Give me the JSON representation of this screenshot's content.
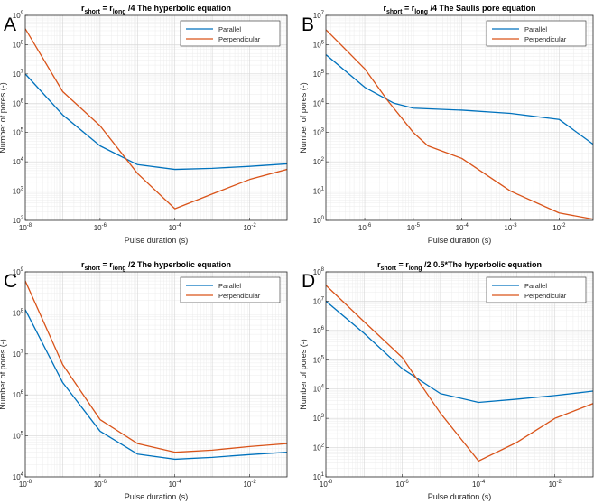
{
  "figure_colors": {
    "parallel": "#0072BD",
    "perpendicular": "#D95319"
  },
  "chart_data": [
    {
      "type": "line",
      "panel_letter": "A",
      "title": {
        "r": "r",
        "short": "short",
        "eq": " = r",
        "long": "long",
        "rest": " /4  The hyperbolic equation"
      },
      "xlabel": "Pulse duration (s)",
      "ylabel": "Number of pores (-)",
      "xscale": "log",
      "yscale": "log",
      "xlim_exp": [
        -8,
        -1
      ],
      "ylim_exp": [
        2,
        9
      ],
      "xtick_exps": [
        -8,
        -6,
        -4,
        -2
      ],
      "ytick_exps": [
        2,
        3,
        4,
        5,
        6,
        7,
        8,
        9
      ],
      "legend": {
        "location": "top-right",
        "entries": [
          "Parallel",
          "Perpendicular"
        ]
      },
      "series": [
        {
          "name": "Parallel",
          "x": [
            1e-08,
            1e-07,
            1e-06,
            1e-05,
            0.0001,
            0.001,
            0.01,
            0.1
          ],
          "y": [
            10000000.0,
            400000.0,
            35000.0,
            8000.0,
            5500.0,
            6000.0,
            7000.0,
            8500.0
          ]
        },
        {
          "name": "Perpendicular",
          "x": [
            1e-08,
            1e-07,
            1e-06,
            1e-05,
            0.0001,
            0.001,
            0.01,
            0.1
          ],
          "y": [
            350000000.0,
            2500000.0,
            170000.0,
            4000.0,
            250,
            800,
            2500,
            5500
          ]
        }
      ]
    },
    {
      "type": "line",
      "panel_letter": "B",
      "title": {
        "r": "r",
        "short": "short",
        "eq": " = r",
        "long": "long",
        "rest": " /4   The Saulis pore equation"
      },
      "xlabel": "Pulse duration (s)",
      "ylabel": "Number of pores (-)",
      "xscale": "log",
      "yscale": "log",
      "xlim_exp": [
        -6.8,
        -1.3
      ],
      "ylim_exp": [
        0,
        7
      ],
      "xtick_exps": [
        -6,
        -5,
        -4,
        -3,
        -2
      ],
      "ytick_exps": [
        0,
        1,
        2,
        3,
        4,
        5,
        6,
        7
      ],
      "legend": {
        "location": "top-right",
        "entries": [
          "Parallel",
          "Perpendicular"
        ]
      },
      "series": [
        {
          "name": "Parallel",
          "x": [
            1.6e-07,
            1e-06,
            4e-06,
            1e-05,
            0.0001,
            0.001,
            0.01,
            0.05
          ],
          "y": [
            450000.0,
            35000.0,
            10000.0,
            6800.0,
            5800.0,
            4500.0,
            2800.0,
            400
          ]
        },
        {
          "name": "Perpendicular",
          "x": [
            1.6e-07,
            1e-06,
            3e-06,
            1e-05,
            2e-05,
            0.0001,
            0.001,
            0.01,
            0.05
          ],
          "y": [
            3200000.0,
            150000.0,
            12000.0,
            1000.0,
            350,
            130,
            10,
            1.8,
            1.1
          ]
        }
      ]
    },
    {
      "type": "line",
      "panel_letter": "C",
      "title": {
        "r": "r",
        "short": "short",
        "eq": " = r",
        "long": "long",
        "rest": " /2   The hyperbolic equation"
      },
      "xlabel": "Pulse duration (s)",
      "ylabel": "Number of pores (-)",
      "xscale": "log",
      "yscale": "log",
      "xlim_exp": [
        -8,
        -1
      ],
      "ylim_exp": [
        4,
        9
      ],
      "xtick_exps": [
        -8,
        -6,
        -4,
        -2
      ],
      "ytick_exps": [
        4,
        5,
        6,
        7,
        8,
        9
      ],
      "legend": {
        "location": "top-right",
        "entries": [
          "Parallel",
          "Perpendicular"
        ]
      },
      "series": [
        {
          "name": "Parallel",
          "x": [
            1e-08,
            1e-07,
            1e-06,
            1e-05,
            0.0001,
            0.001,
            0.01,
            0.1
          ],
          "y": [
            120000000.0,
            2000000.0,
            130000.0,
            36000.0,
            27000.0,
            30000.0,
            35000.0,
            40000.0
          ]
        },
        {
          "name": "Perpendicular",
          "x": [
            1e-08,
            1e-07,
            1e-06,
            1e-05,
            0.0001,
            0.001,
            0.01,
            0.1
          ],
          "y": [
            600000000.0,
            5500000.0,
            250000.0,
            65000.0,
            40000.0,
            45000.0,
            55000.0,
            65000.0
          ]
        }
      ]
    },
    {
      "type": "line",
      "panel_letter": "D",
      "title": {
        "r": "r",
        "short": "short",
        "eq": " = r",
        "long": "long",
        "rest": " /2  0.5*The hyperbolic equation"
      },
      "xlabel": "Pulse duration (s)",
      "ylabel": "Number of pores (-)",
      "xscale": "log",
      "yscale": "log",
      "xlim_exp": [
        -8,
        -1
      ],
      "ylim_exp": [
        1,
        8
      ],
      "xtick_exps": [
        -8,
        -6,
        -4,
        -2
      ],
      "ytick_exps": [
        1,
        2,
        3,
        4,
        5,
        6,
        7,
        8
      ],
      "legend": {
        "location": "top-right",
        "entries": [
          "Parallel",
          "Perpendicular"
        ]
      },
      "series": [
        {
          "name": "Parallel",
          "x": [
            1e-08,
            1e-07,
            1e-06,
            1e-05,
            0.0001,
            0.001,
            0.01,
            0.1
          ],
          "y": [
            10000000.0,
            800000.0,
            50000.0,
            7000.0,
            3500.0,
            4500.0,
            6000.0,
            8500.0
          ]
        },
        {
          "name": "Perpendicular",
          "x": [
            1e-08,
            1e-07,
            1e-06,
            1e-05,
            0.0001,
            0.001,
            0.01,
            0.1
          ],
          "y": [
            35000000.0,
            2000000.0,
            120000.0,
            1500.0,
            35,
            150,
            1000.0,
            3200.0
          ]
        }
      ]
    }
  ]
}
